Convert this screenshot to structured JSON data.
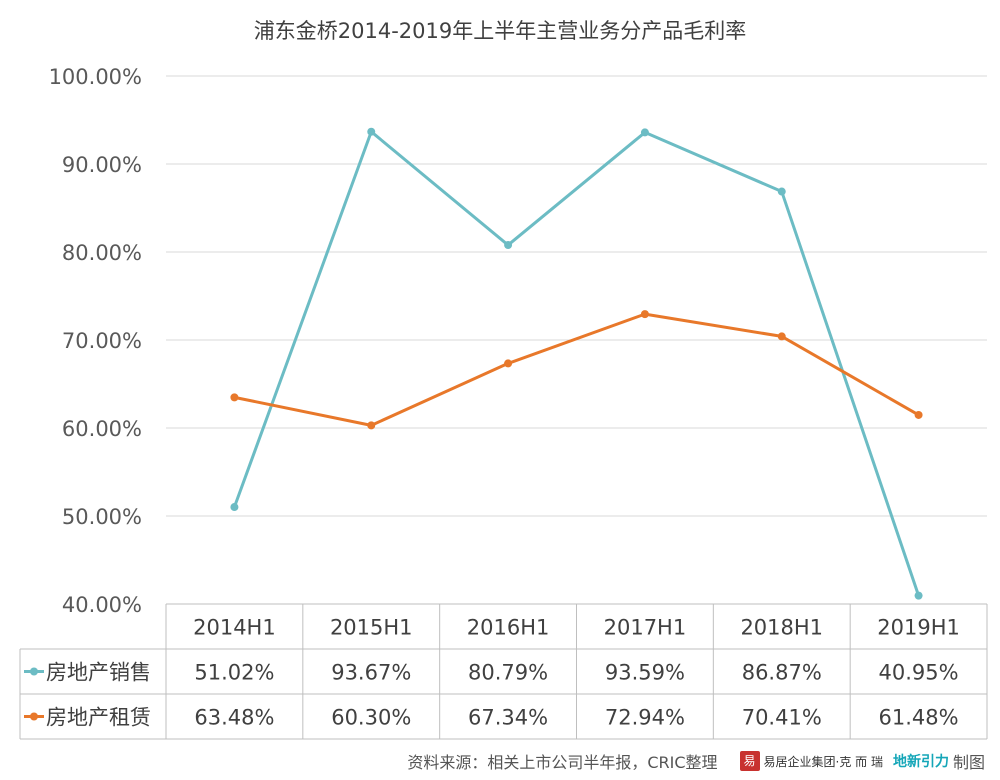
{
  "chart_data": {
    "type": "line",
    "title": "浦东金桥2014-2019年上半年主营业务分产品毛利率",
    "categories": [
      "2014H1",
      "2015H1",
      "2016H1",
      "2017H1",
      "2018H1",
      "2019H1"
    ],
    "series": [
      {
        "name": "房地产销售",
        "color": "#6cbcc4",
        "values": [
          51.02,
          93.67,
          80.79,
          93.59,
          86.87,
          40.95
        ],
        "labels": [
          "51.02%",
          "93.67%",
          "80.79%",
          "93.59%",
          "86.87%",
          "40.95%"
        ]
      },
      {
        "name": "房地产租赁",
        "color": "#e8782a",
        "values": [
          63.48,
          60.3,
          67.34,
          72.94,
          70.41,
          61.48
        ],
        "labels": [
          "63.48%",
          "60.30%",
          "67.34%",
          "72.94%",
          "70.41%",
          "61.48%"
        ]
      }
    ],
    "y_ticks": [
      "40.00%",
      "50.00%",
      "60.00%",
      "70.00%",
      "80.00%",
      "90.00%",
      "100.00%"
    ],
    "ylim": [
      40,
      100
    ],
    "grid": true,
    "legend": "data-table",
    "xlabel": "",
    "ylabel": ""
  },
  "footer": {
    "source": "资料来源：相关上市公司半年报，CRIC整理",
    "logo_char": "易",
    "brand": "易居企业集团·克 而 瑞",
    "brand2": "地新引力",
    "made": "制图"
  }
}
